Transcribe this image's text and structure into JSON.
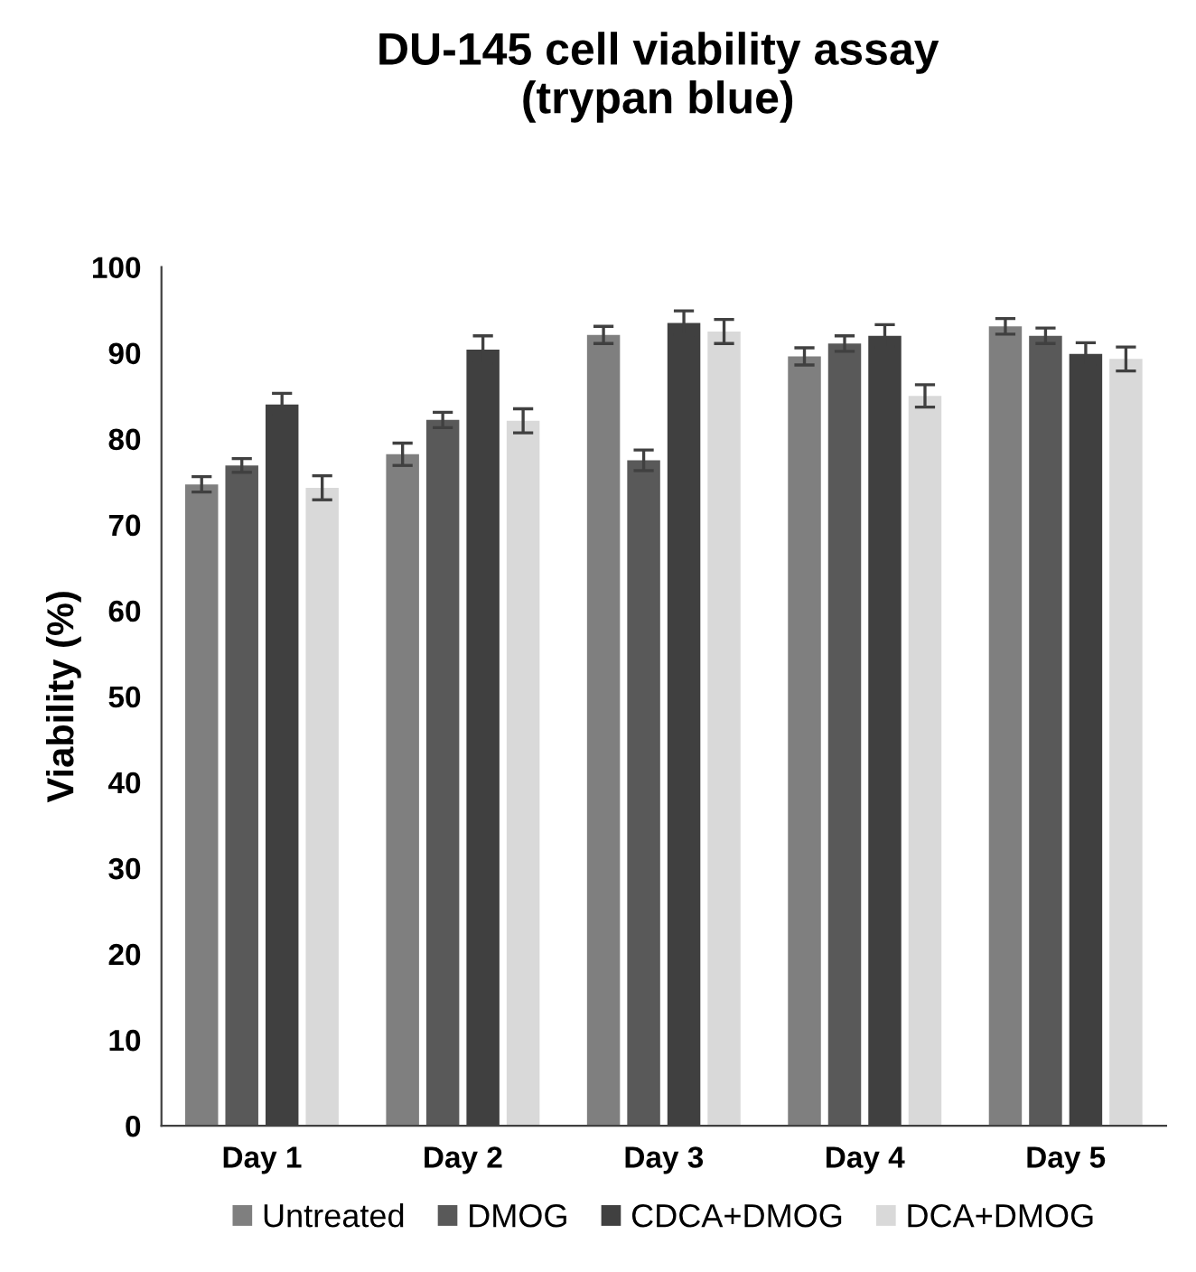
{
  "chart_data": {
    "type": "bar",
    "title": "DU-145 cell viability assay\n(trypan blue)",
    "ylabel": "Viability (%)",
    "categories": [
      "Day 1",
      "Day 2",
      "Day 3",
      "Day 4",
      "Day 5"
    ],
    "series": [
      {
        "name": "Untreated",
        "color": "#7f7f7f",
        "values": [
          74.7,
          78.2,
          92.1,
          89.6,
          93.1
        ],
        "errors": [
          0.9,
          1.3,
          1.0,
          1.0,
          0.9
        ]
      },
      {
        "name": "DMOG",
        "color": "#595959",
        "values": [
          76.9,
          82.2,
          77.5,
          91.1,
          92.0
        ],
        "errors": [
          0.8,
          0.9,
          1.2,
          0.9,
          0.9
        ]
      },
      {
        "name": "CDCA+DMOG",
        "color": "#404040",
        "values": [
          84.0,
          90.4,
          93.5,
          92.0,
          89.9
        ],
        "errors": [
          1.3,
          1.6,
          1.4,
          1.3,
          1.3
        ]
      },
      {
        "name": "DCA+DMOG",
        "color": "#d9d9d9",
        "values": [
          74.3,
          82.1,
          92.5,
          85.0,
          89.3
        ],
        "errors": [
          1.4,
          1.4,
          1.4,
          1.3,
          1.4
        ]
      }
    ],
    "ylim": [
      0,
      100
    ],
    "yticks": [
      0,
      10,
      20,
      30,
      40,
      50,
      60,
      70,
      80,
      90,
      100
    ],
    "grid": false,
    "legend": "bottom"
  }
}
